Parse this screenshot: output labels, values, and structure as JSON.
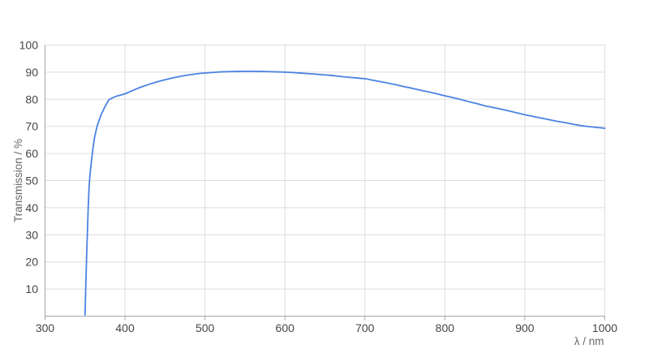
{
  "chart_data": {
    "type": "line",
    "title": "",
    "xlabel": "λ / nm",
    "ylabel": "Transmission / %",
    "xlim": [
      300,
      1000
    ],
    "ylim": [
      0,
      100
    ],
    "x_ticks": [
      300,
      400,
      500,
      600,
      700,
      800,
      900,
      1000
    ],
    "y_ticks": [
      10,
      20,
      30,
      40,
      50,
      60,
      70,
      80,
      90,
      100
    ],
    "grid": true,
    "legend_position": "none",
    "series": [
      {
        "name": "transmission",
        "color": "#4a82e4",
        "x": [
          350,
          352,
          354,
          355,
          356,
          358,
          360,
          362,
          365,
          368,
          370,
          375,
          380,
          385,
          390,
          395,
          400,
          410,
          420,
          430,
          440,
          450,
          460,
          470,
          480,
          490,
          500,
          510,
          520,
          530,
          540,
          550,
          560,
          570,
          580,
          590,
          600,
          610,
          620,
          630,
          640,
          650,
          660,
          670,
          680,
          690,
          700,
          710,
          720,
          730,
          740,
          750,
          760,
          770,
          780,
          790,
          800,
          810,
          820,
          830,
          840,
          850,
          860,
          870,
          880,
          890,
          900,
          910,
          920,
          930,
          940,
          950,
          960,
          970,
          980,
          990,
          1000
        ],
        "y": [
          0.5,
          22,
          40,
          47,
          51.5,
          57,
          62,
          66,
          70,
          72.5,
          74.2,
          77.3,
          79.9,
          80.6,
          81.2,
          81.6,
          82,
          83.3,
          84.5,
          85.5,
          86.4,
          87.2,
          87.9,
          88.5,
          89,
          89.4,
          89.7,
          89.9,
          90.1,
          90.2,
          90.25,
          90.3,
          90.3,
          90.25,
          90.2,
          90.1,
          90,
          89.85,
          89.65,
          89.45,
          89.2,
          89,
          88.75,
          88.4,
          88.1,
          87.85,
          87.6,
          87,
          86.5,
          85.9,
          85.3,
          84.6,
          84,
          83.3,
          82.7,
          82,
          81.3,
          80.6,
          79.9,
          79.1,
          78.4,
          77.6,
          77,
          76.4,
          75.7,
          75,
          74.3,
          73.7,
          73.1,
          72.5,
          71.9,
          71.4,
          70.8,
          70.3,
          69.9,
          69.6,
          69.3
        ]
      }
    ],
    "colors": {
      "background": "#ffffff",
      "grid": "#dddddd",
      "axis": "#a6a6a6",
      "tick_label": "#454545",
      "axis_title": "#666666",
      "line": "#4a82e4"
    }
  }
}
